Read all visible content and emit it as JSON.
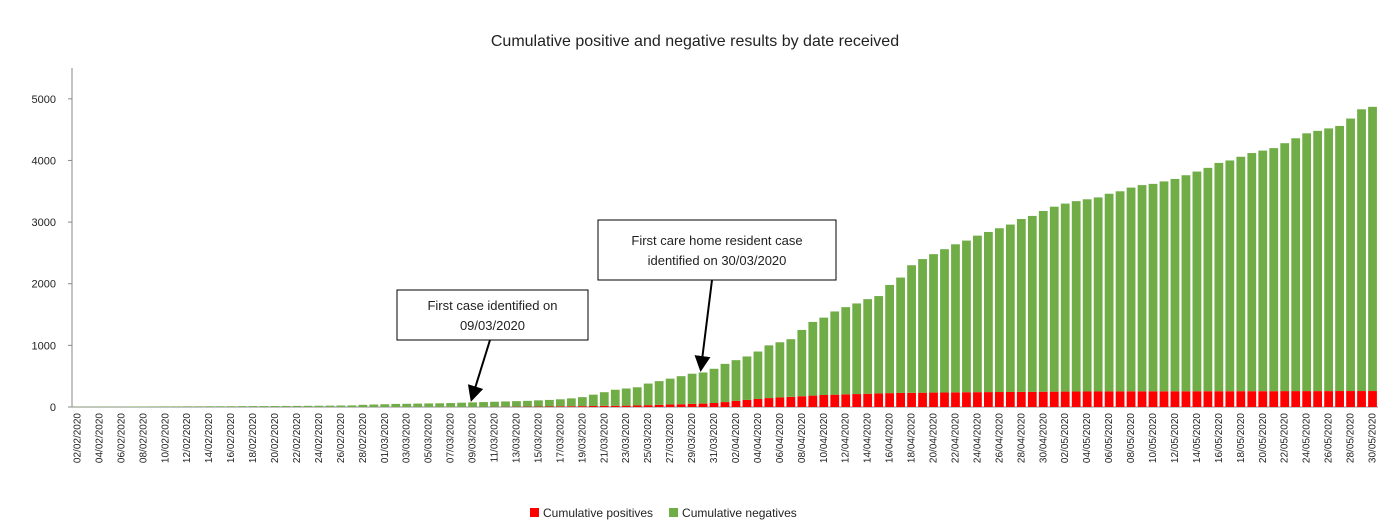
{
  "chart_data": {
    "type": "stacked_bar",
    "title": "Cumulative positive and negative results by date received",
    "categories": [
      "02/02/2020",
      null,
      "04/02/2020",
      null,
      "06/02/2020",
      null,
      "08/02/2020",
      null,
      "10/02/2020",
      null,
      "12/02/2020",
      null,
      "14/02/2020",
      null,
      "16/02/2020",
      null,
      "18/02/2020",
      null,
      "20/02/2020",
      null,
      "22/02/2020",
      null,
      "24/02/2020",
      null,
      "26/02/2020",
      null,
      "28/02/2020",
      null,
      "01/03/2020",
      null,
      "03/03/2020",
      null,
      "05/03/2020",
      null,
      "07/03/2020",
      null,
      "09/03/2020",
      null,
      "11/03/2020",
      null,
      "13/03/2020",
      null,
      "15/03/2020",
      null,
      "17/03/2020",
      null,
      "19/03/2020",
      null,
      "21/03/2020",
      null,
      "23/03/2020",
      null,
      "25/03/2020",
      null,
      "27/03/2020",
      null,
      "29/03/2020",
      null,
      "31/03/2020",
      null,
      "02/04/2020",
      null,
      "04/04/2020",
      null,
      "06/04/2020",
      null,
      "08/04/2020",
      null,
      "10/04/2020",
      null,
      "12/04/2020",
      null,
      "14/04/2020",
      null,
      "16/04/2020",
      null,
      "18/04/2020",
      null,
      "20/04/2020",
      null,
      "22/04/2020",
      null,
      "24/04/2020",
      null,
      "26/04/2020",
      null,
      "28/04/2020",
      null,
      "30/04/2020",
      null,
      "02/05/2020",
      null,
      "04/05/2020",
      null,
      "06/05/2020",
      null,
      "08/05/2020",
      null,
      "10/05/2020",
      null,
      "12/05/2020",
      null,
      "14/05/2020",
      null,
      "16/05/2020",
      null,
      "18/05/2020",
      null,
      "20/05/2020",
      null,
      "22/05/2020",
      null,
      "24/05/2020",
      null,
      "26/05/2020",
      null,
      "28/05/2020",
      null,
      "30/05/2020"
    ],
    "series": [
      {
        "name": "Cumulative positives",
        "color": "#ff0000",
        "values": [
          0,
          0,
          0,
          0,
          0,
          0,
          0,
          0,
          0,
          0,
          0,
          0,
          0,
          0,
          0,
          0,
          0,
          0,
          0,
          0,
          0,
          0,
          0,
          0,
          0,
          0,
          0,
          0,
          0,
          0,
          0,
          0,
          0,
          0,
          0,
          0,
          1,
          2,
          3,
          4,
          5,
          6,
          7,
          8,
          10,
          12,
          14,
          16,
          18,
          20,
          22,
          25,
          30,
          35,
          40,
          45,
          50,
          55,
          65,
          80,
          100,
          115,
          130,
          145,
          155,
          165,
          175,
          185,
          195,
          200,
          205,
          210,
          215,
          220,
          225,
          228,
          230,
          232,
          234,
          236,
          238,
          240,
          241,
          242,
          243,
          244,
          245,
          246,
          248,
          249,
          250,
          251,
          252,
          252,
          253,
          253,
          254,
          254,
          255,
          255,
          255,
          255,
          256,
          256,
          256,
          256,
          257,
          257,
          257,
          257,
          258,
          258,
          258,
          258,
          258,
          259,
          259,
          259,
          259
        ]
      },
      {
        "name": "Cumulative negatives",
        "color": "#70ad47",
        "values": [
          5,
          6,
          6,
          7,
          7,
          8,
          8,
          9,
          10,
          10,
          11,
          11,
          12,
          12,
          13,
          14,
          15,
          15,
          16,
          17,
          18,
          19,
          20,
          22,
          24,
          26,
          35,
          40,
          45,
          50,
          52,
          55,
          58,
          60,
          64,
          70,
          74,
          78,
          82,
          86,
          90,
          94,
          101,
          107,
          115,
          128,
          146,
          184,
          222,
          260,
          278,
          295,
          350,
          385,
          420,
          455,
          490,
          505,
          555,
          620,
          660,
          705,
          770,
          855,
          895,
          935,
          1075,
          1195,
          1255,
          1350,
          1415,
          1470,
          1535,
          1580,
          1755,
          1872,
          2070,
          2168,
          2246,
          2324,
          2402,
          2460,
          2539,
          2598,
          2657,
          2716,
          2805,
          2854,
          2932,
          3001,
          3050,
          3089,
          3118,
          3148,
          3207,
          3247,
          3306,
          3346,
          3365,
          3405,
          3445,
          3505,
          3564,
          3624,
          3704,
          3744,
          3803,
          3863,
          3903,
          3943,
          4022,
          4102,
          4182,
          4222,
          4262,
          4301,
          4421,
          4571,
          4611
        ]
      }
    ],
    "ylim": [
      0,
      5500
    ],
    "yticks": [
      0,
      1000,
      2000,
      3000,
      4000,
      5000
    ],
    "annotations": [
      {
        "lines": [
          "First case identified on",
          "09/03/2020"
        ]
      },
      {
        "lines": [
          "First care home resident case",
          "identified on 30/03/2020"
        ]
      }
    ],
    "legend": "bottom"
  }
}
